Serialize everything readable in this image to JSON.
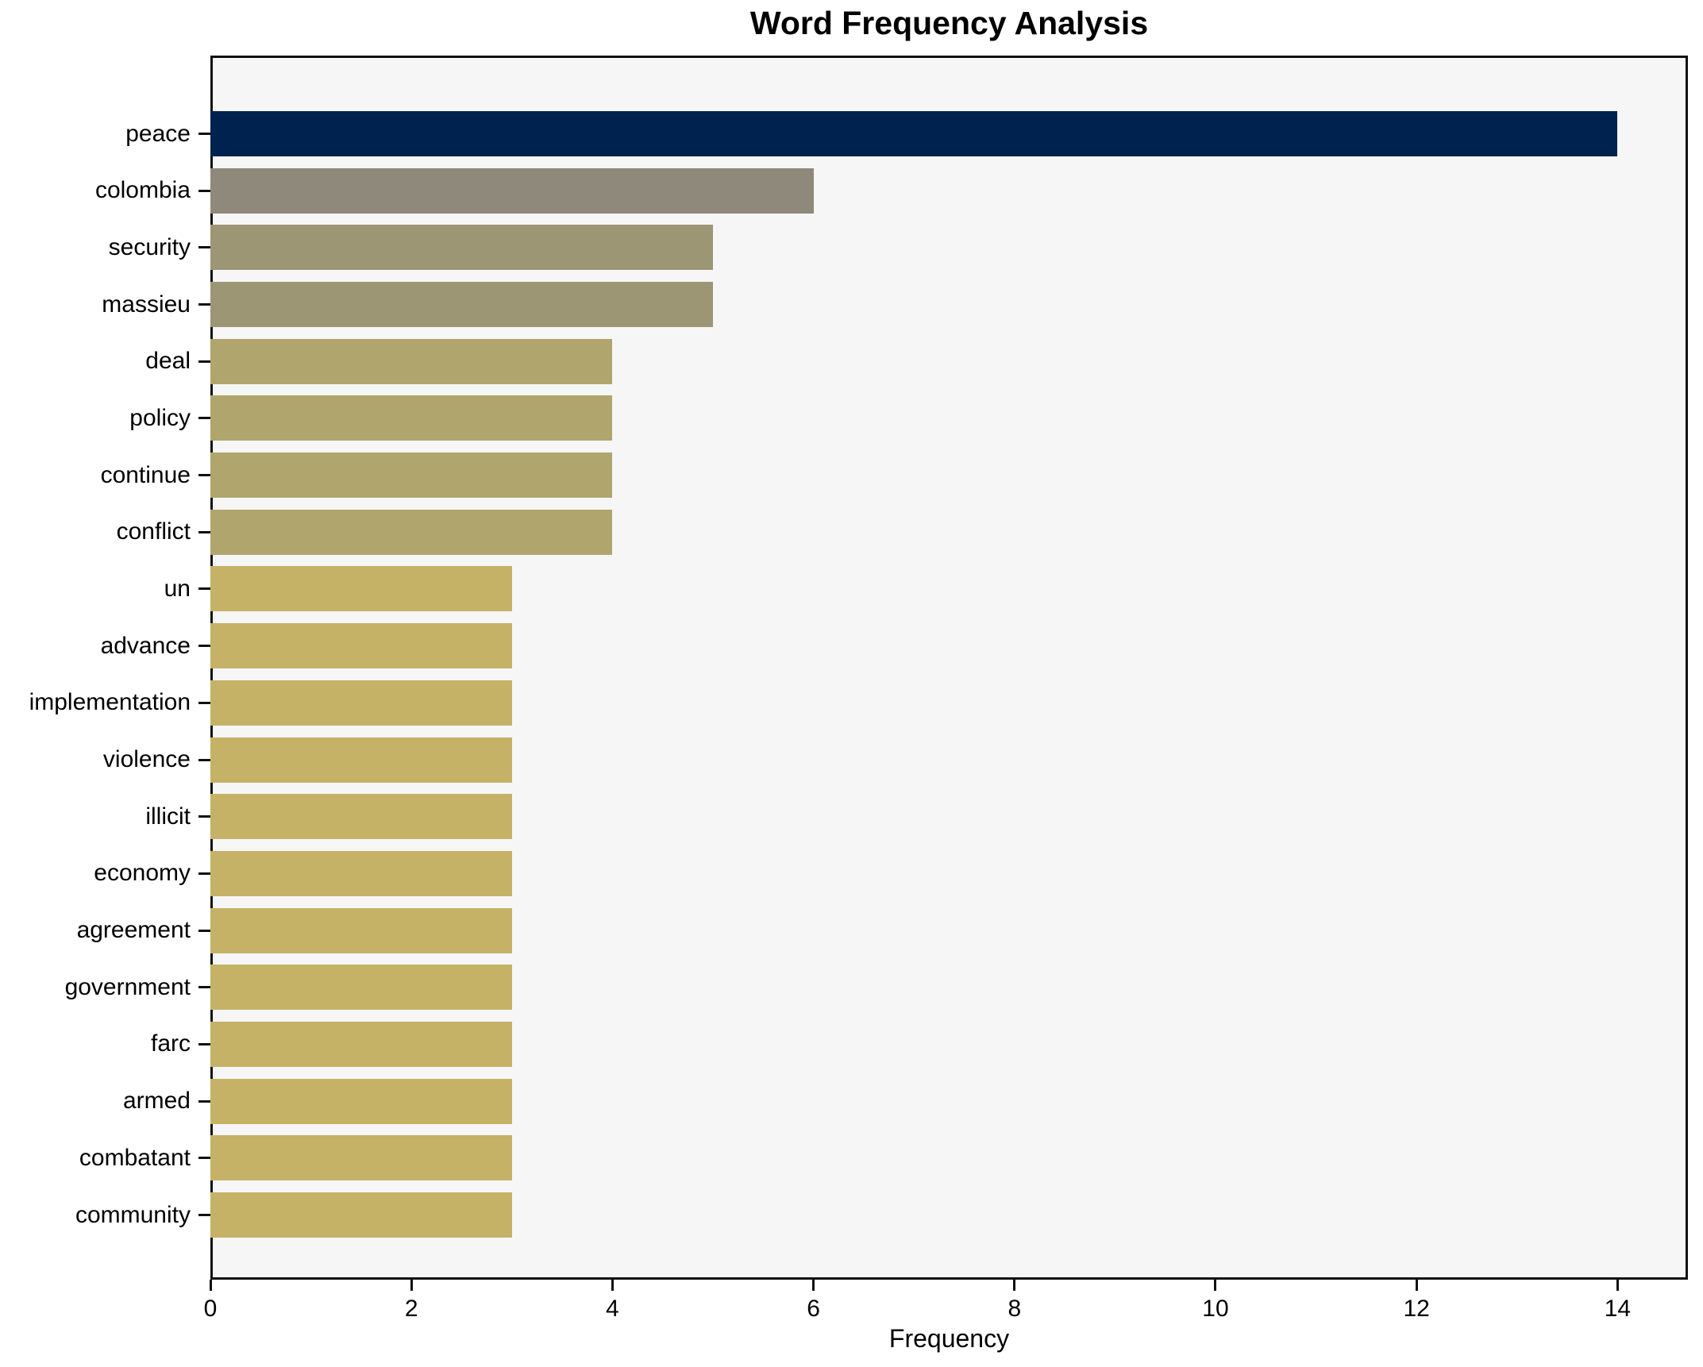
{
  "chart_data": {
    "type": "bar",
    "orientation": "horizontal",
    "title": "Word Frequency Analysis",
    "xlabel": "Frequency",
    "ylabel": "",
    "categories": [
      "peace",
      "colombia",
      "security",
      "massieu",
      "deal",
      "policy",
      "continue",
      "conflict",
      "un",
      "advance",
      "implementation",
      "violence",
      "illicit",
      "economy",
      "agreement",
      "government",
      "farc",
      "armed",
      "combatant",
      "community"
    ],
    "values": [
      14,
      6,
      5,
      5,
      4,
      4,
      4,
      4,
      3,
      3,
      3,
      3,
      3,
      3,
      3,
      3,
      3,
      3,
      3,
      3
    ],
    "bar_colors": [
      "#00224e",
      "#8f897b",
      "#9d9674",
      "#9d9674",
      "#b0a56c",
      "#b0a56c",
      "#b0a56c",
      "#b0a56c",
      "#c5b267",
      "#c5b267",
      "#c5b267",
      "#c5b267",
      "#c5b267",
      "#c5b267",
      "#c5b267",
      "#c5b267",
      "#c5b267",
      "#c5b267",
      "#c5b267",
      "#c5b267"
    ],
    "xlim": [
      0,
      14.7
    ],
    "xticks": [
      0,
      2,
      4,
      6,
      8,
      10,
      12,
      14
    ],
    "grid": false,
    "legend": "none",
    "plot_background": "#f6f6f7",
    "figure_background": "#ffffff",
    "spine_color": "#111111",
    "text_color": "#000000"
  }
}
